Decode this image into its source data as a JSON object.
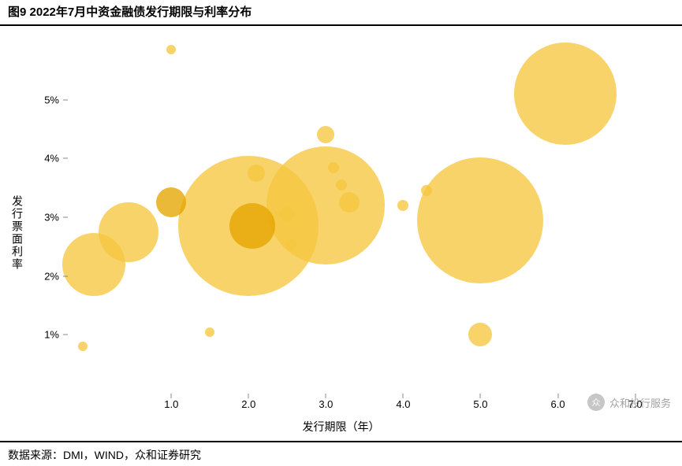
{
  "title": "图9 2022年7月中资金融债发行期限与利率分布",
  "footer": "数据来源：DMI，WIND，众和证券研究",
  "watermark_text": "众和投行服务",
  "watermark_glyph": "众",
  "y_axis_title": "发行票面利率",
  "x_axis_title": "发行期限（年）",
  "title_fontsize": 15,
  "footer_fontsize": 14,
  "chart": {
    "type": "bubble",
    "background_color": "#ffffff",
    "bubble_color": "#f6c63f",
    "bubble_opacity": 0.78,
    "dark_bubble_color": "#e6a500",
    "x": {
      "min": -0.4,
      "max": 7.3,
      "ticks": [
        1.0,
        2.0,
        3.0,
        4.0,
        5.0,
        6.0,
        7.0
      ],
      "tick_format": "0.0"
    },
    "y": {
      "min": 0.0,
      "max": 6.0,
      "ticks": [
        1,
        2,
        3,
        4,
        5
      ],
      "tick_suffix": "%"
    },
    "points": [
      {
        "x": -0.15,
        "y": 0.8,
        "d": 12,
        "dark": false
      },
      {
        "x": 0.0,
        "y": 2.2,
        "d": 80,
        "dark": false
      },
      {
        "x": 0.45,
        "y": 2.75,
        "d": 76,
        "dark": false
      },
      {
        "x": 1.0,
        "y": 3.25,
        "d": 38,
        "dark": true
      },
      {
        "x": 1.0,
        "y": 5.85,
        "d": 12,
        "dark": false
      },
      {
        "x": 1.5,
        "y": 1.05,
        "d": 12,
        "dark": false
      },
      {
        "x": 2.0,
        "y": 2.85,
        "d": 178,
        "dark": false
      },
      {
        "x": 2.05,
        "y": 2.85,
        "d": 58,
        "dark": true
      },
      {
        "x": 2.1,
        "y": 3.75,
        "d": 22,
        "dark": false
      },
      {
        "x": 2.5,
        "y": 3.05,
        "d": 18,
        "dark": false
      },
      {
        "x": 2.55,
        "y": 2.55,
        "d": 14,
        "dark": false
      },
      {
        "x": 3.0,
        "y": 3.2,
        "d": 150,
        "dark": false
      },
      {
        "x": 3.0,
        "y": 4.4,
        "d": 22,
        "dark": false
      },
      {
        "x": 3.1,
        "y": 3.85,
        "d": 14,
        "dark": false
      },
      {
        "x": 3.2,
        "y": 3.55,
        "d": 14,
        "dark": false
      },
      {
        "x": 3.3,
        "y": 3.25,
        "d": 26,
        "dark": false
      },
      {
        "x": 4.0,
        "y": 3.2,
        "d": 14,
        "dark": false
      },
      {
        "x": 4.3,
        "y": 3.45,
        "d": 14,
        "dark": false
      },
      {
        "x": 5.0,
        "y": 2.95,
        "d": 160,
        "dark": false
      },
      {
        "x": 5.0,
        "y": 1.0,
        "d": 30,
        "dark": false
      },
      {
        "x": 6.1,
        "y": 5.1,
        "d": 130,
        "dark": false
      }
    ]
  }
}
